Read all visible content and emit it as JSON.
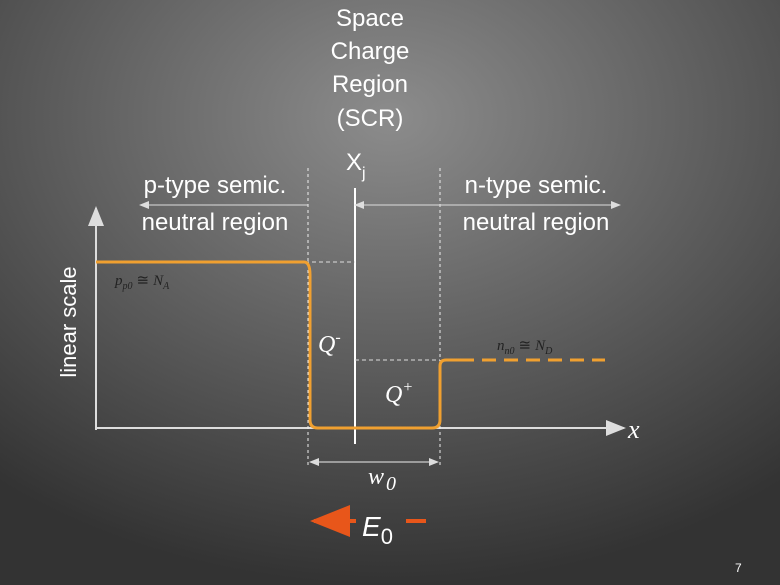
{
  "title_lines": [
    "Space",
    "Charge",
    "Region",
    "(SCR)"
  ],
  "junction_label": {
    "base": "X",
    "sub": "j"
  },
  "p_region": {
    "lines": [
      "p-type semic.",
      "neutral region"
    ],
    "concentration": {
      "base": "p",
      "sub": "p0",
      "relation": "≅",
      "rhs_base": "N",
      "rhs_sub": "A"
    }
  },
  "n_region": {
    "lines": [
      "n-type semic.",
      "neutral region"
    ],
    "concentration": {
      "base": "n",
      "sub": "n0",
      "relation": "≅",
      "rhs_base": "N",
      "rhs_sub": "D"
    }
  },
  "y_axis_label": "linear scale",
  "x_axis_label": "x",
  "charges": {
    "negative": {
      "base": "Q",
      "sup": "-"
    },
    "positive": {
      "base": "Q",
      "sup": "+"
    }
  },
  "width_label": {
    "base": "w",
    "sub": "0"
  },
  "field_label": {
    "base": "E",
    "sub": "0"
  },
  "page_number": "7"
}
